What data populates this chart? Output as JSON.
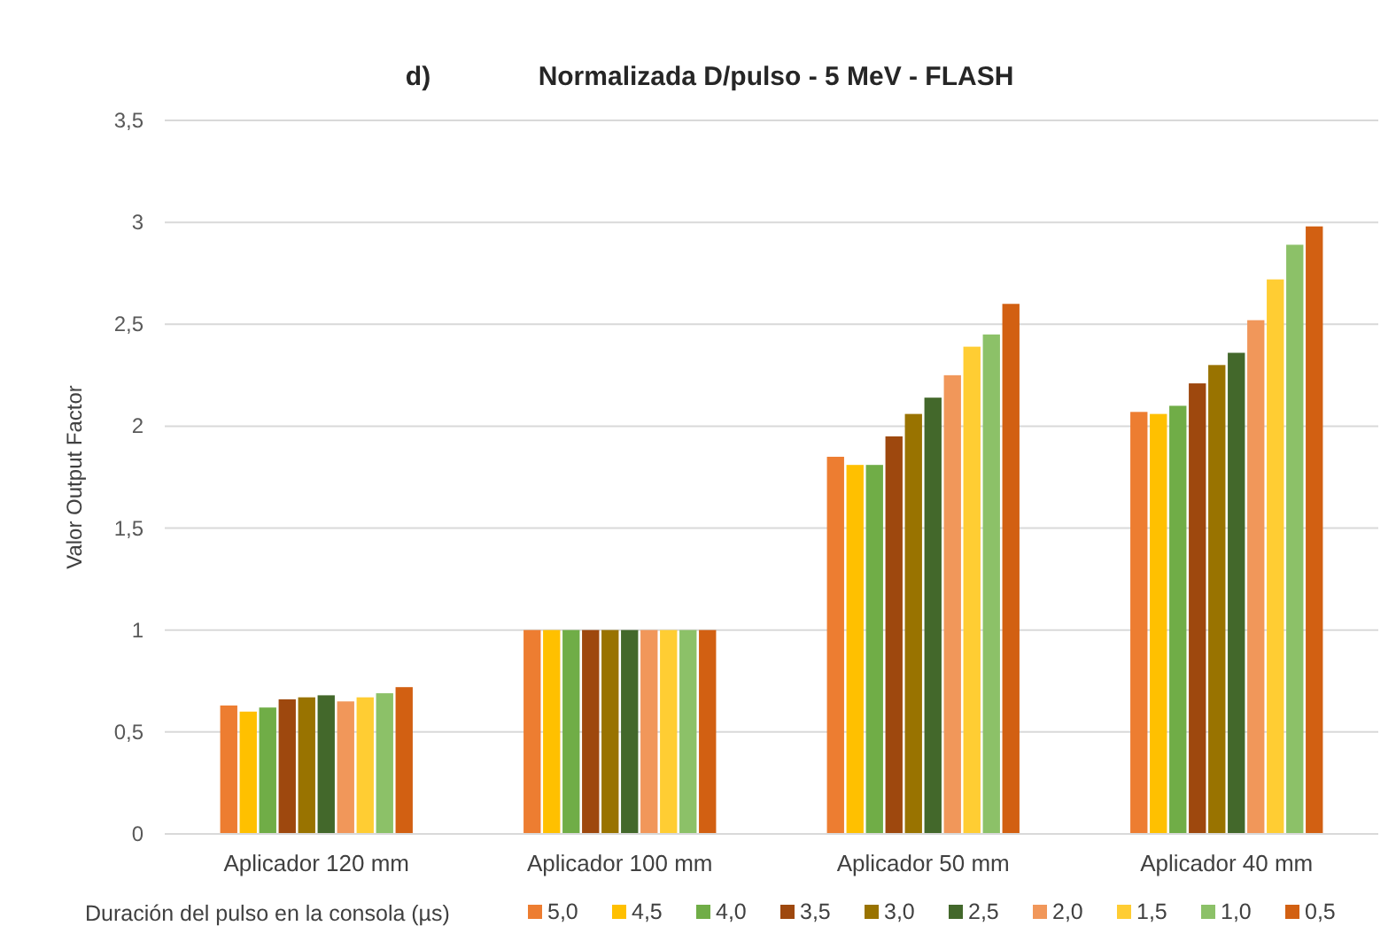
{
  "chart_data": {
    "type": "bar",
    "title": "Normalizada D/pulso - 5 MeV - FLASH",
    "annotations": [
      "d)"
    ],
    "ylabel": "Valor Output Factor",
    "legend_title": "Duración del pulso en la consola (µs)",
    "categories": [
      "Aplicador 120 mm",
      "Aplicador 100 mm",
      "Aplicador 50 mm",
      "Aplicador 40 mm"
    ],
    "series": [
      {
        "name": "5,0",
        "color": "#ed7d31",
        "values": [
          0.63,
          1,
          1.85,
          2.07
        ]
      },
      {
        "name": "4,5",
        "color": "#ffc000",
        "values": [
          0.6,
          1,
          1.81,
          2.06
        ]
      },
      {
        "name": "4,0",
        "color": "#70ad47",
        "values": [
          0.62,
          1,
          1.81,
          2.1
        ]
      },
      {
        "name": "3,5",
        "color": "#9e480e",
        "values": [
          0.66,
          1,
          1.95,
          2.21
        ]
      },
      {
        "name": "3,0",
        "color": "#997300",
        "values": [
          0.67,
          1,
          2.06,
          2.3
        ]
      },
      {
        "name": "2,5",
        "color": "#43682b",
        "values": [
          0.68,
          1,
          2.14,
          2.36
        ]
      },
      {
        "name": "2,0",
        "color": "#f1975a",
        "values": [
          0.65,
          1,
          2.25,
          2.52
        ]
      },
      {
        "name": "1,5",
        "color": "#ffcd33",
        "values": [
          0.67,
          1,
          2.39,
          2.72
        ]
      },
      {
        "name": "1,0",
        "color": "#8cc168",
        "values": [
          0.69,
          1,
          2.45,
          2.89
        ]
      },
      {
        "name": "0,5",
        "color": "#d26012",
        "values": [
          0.72,
          1,
          2.6,
          2.98
        ]
      }
    ],
    "ylim": [
      0,
      3.5
    ],
    "yticks": [
      0,
      {
        "value": 0.5,
        "label": "0,5"
      },
      1,
      {
        "value": 1.5,
        "label": "1,5"
      },
      2,
      {
        "value": 2.5,
        "label": "2,5"
      },
      3,
      {
        "value": 3.5,
        "label": "3,5"
      }
    ],
    "grid": "y",
    "legend": "bottom"
  }
}
